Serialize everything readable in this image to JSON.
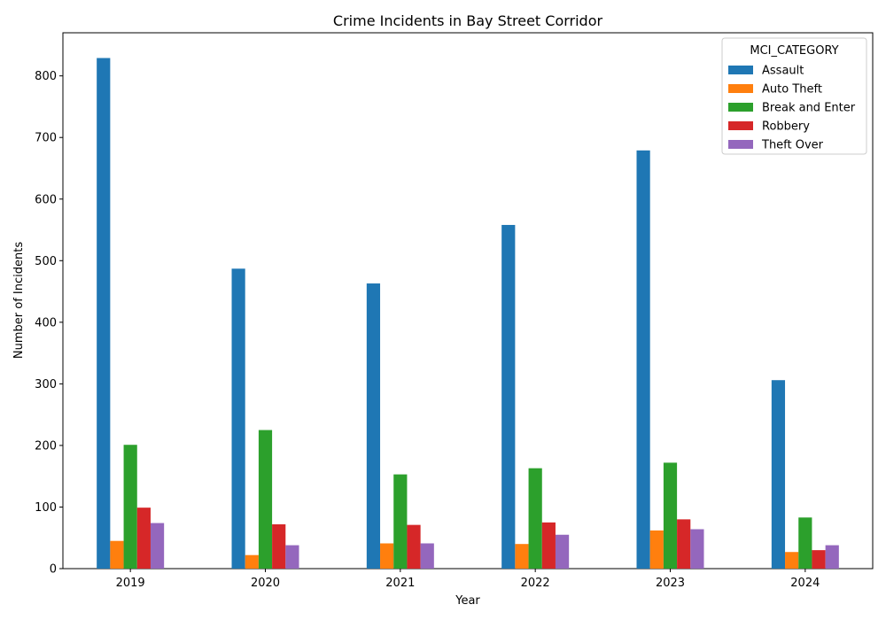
{
  "chart_data": {
    "type": "bar",
    "title": "Crime Incidents in Bay Street Corridor",
    "xlabel": "Year",
    "ylabel": "Number of Incidents",
    "categories": [
      "2019",
      "2020",
      "2021",
      "2022",
      "2023",
      "2024"
    ],
    "ylim": [
      0,
      870
    ],
    "yticks": [
      0,
      100,
      200,
      300,
      400,
      500,
      600,
      700,
      800
    ],
    "legend_title": "MCI_CATEGORY",
    "legend_position": "top-right",
    "grid": false,
    "series": [
      {
        "name": "Assault",
        "color": "#1f77b4",
        "values": [
          829,
          487,
          463,
          558,
          679,
          306
        ]
      },
      {
        "name": "Auto Theft",
        "color": "#ff7f0e",
        "values": [
          45,
          22,
          41,
          40,
          62,
          27
        ]
      },
      {
        "name": "Break and Enter",
        "color": "#2ca02c",
        "values": [
          201,
          225,
          153,
          163,
          172,
          83
        ]
      },
      {
        "name": "Robbery",
        "color": "#d62728",
        "values": [
          99,
          72,
          71,
          75,
          80,
          30
        ]
      },
      {
        "name": "Theft Over",
        "color": "#9467bd",
        "values": [
          74,
          38,
          41,
          55,
          64,
          38
        ]
      }
    ]
  }
}
